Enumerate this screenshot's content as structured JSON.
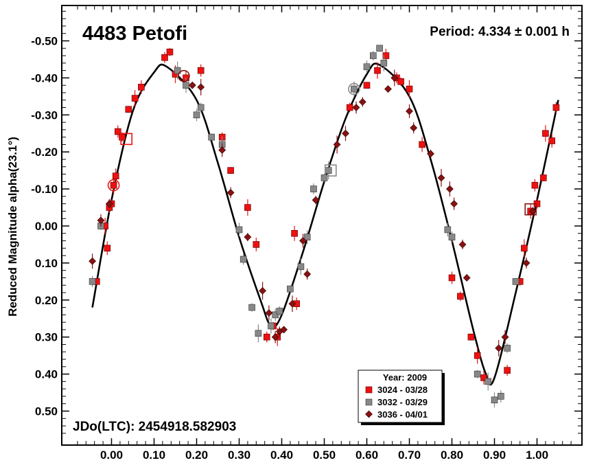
{
  "chart_data": {
    "type": "scatter",
    "title": "4483 Petofi",
    "period_text": "Period: 4.334 ± 0.001 h",
    "epoch_text": "JDo(LTC): 2454918.582903",
    "ylabel": "Reduced Magnitude alpha(23.1°)",
    "xlabel": "",
    "xlim": [
      -0.12,
      1.12
    ],
    "ylim": [
      0.6,
      -0.6
    ],
    "y_inverted": true,
    "x_ticks": [
      0.0,
      0.1,
      0.2,
      0.3,
      0.4,
      0.5,
      0.6,
      0.7,
      0.8,
      0.9,
      1.0
    ],
    "x_tick_labels": [
      "0.00",
      "0.10",
      "0.20",
      "0.30",
      "0.40",
      "0.50",
      "0.60",
      "0.70",
      "0.80",
      "0.90",
      "1.00"
    ],
    "y_ticks": [
      -0.5,
      -0.4,
      -0.3,
      -0.2,
      -0.1,
      0.0,
      0.1,
      0.2,
      0.3,
      0.4,
      0.5
    ],
    "y_tick_labels": [
      "-0.50",
      "-0.40",
      "-0.30",
      "-0.20",
      "-0.10",
      "0.00",
      "0.10",
      "0.20",
      "0.30",
      "0.40",
      "0.50"
    ],
    "grid": false,
    "legend_position": "bottom-center",
    "legend_title": "Year: 2009",
    "fit_curve": {
      "name": "",
      "color": "#000000",
      "x": [
        -0.045,
        0.0,
        0.05,
        0.1,
        0.13,
        0.2,
        0.25,
        0.3,
        0.35,
        0.375,
        0.4,
        0.45,
        0.5,
        0.55,
        0.6,
        0.63,
        0.7,
        0.75,
        0.8,
        0.85,
        0.88,
        0.9,
        0.95,
        1.0,
        1.05
      ],
      "y": [
        0.22,
        -0.07,
        -0.31,
        -0.415,
        -0.43,
        -0.34,
        -0.17,
        0.03,
        0.2,
        0.27,
        0.24,
        0.07,
        -0.12,
        -0.29,
        -0.41,
        -0.435,
        -0.35,
        -0.18,
        0.04,
        0.28,
        0.4,
        0.41,
        0.18,
        -0.07,
        -0.34
      ]
    },
    "series": [
      {
        "name": "3024 - 03/28",
        "color": "#ee1111",
        "marker": "square",
        "x": [
          -0.035,
          -0.015,
          -0.01,
          -0.005,
          0.0,
          0.005,
          0.01,
          0.015,
          0.025,
          0.04,
          0.055,
          0.07,
          0.125,
          0.137,
          0.15,
          0.175,
          0.21,
          0.26,
          0.28,
          0.32,
          0.34,
          0.365,
          0.38,
          0.39,
          0.43,
          0.435,
          0.56,
          0.6,
          0.625,
          0.645,
          0.67,
          0.68,
          0.7,
          0.73,
          0.8,
          0.82,
          0.845,
          0.86,
          0.875,
          0.93,
          0.96,
          0.97,
          0.985,
          0.995,
          1.0,
          1.015,
          1.02,
          1.035,
          1.045
        ],
        "y": [
          0.15,
          0.0,
          0.06,
          -0.05,
          -0.06,
          -0.11,
          -0.135,
          -0.255,
          -0.24,
          -0.315,
          -0.345,
          -0.375,
          -0.455,
          -0.47,
          -0.41,
          -0.4,
          -0.42,
          -0.24,
          -0.15,
          -0.05,
          0.05,
          0.3,
          0.27,
          0.3,
          0.02,
          0.21,
          -0.32,
          -0.38,
          -0.42,
          -0.46,
          -0.4,
          -0.39,
          -0.37,
          -0.22,
          0.14,
          0.19,
          0.3,
          0.35,
          0.41,
          0.39,
          0.15,
          0.06,
          -0.04,
          -0.11,
          -0.06,
          -0.13,
          -0.25,
          -0.23,
          -0.32
        ]
      },
      {
        "name": "3032 - 03/29",
        "color": "#888888",
        "marker": "square",
        "x": [
          -0.045,
          -0.025,
          0.155,
          0.175,
          0.2,
          0.21,
          0.235,
          0.26,
          0.3,
          0.31,
          0.33,
          0.345,
          0.375,
          0.385,
          0.395,
          0.42,
          0.445,
          0.46,
          0.475,
          0.5,
          0.51,
          0.57,
          0.6,
          0.615,
          0.63,
          0.64,
          0.79,
          0.8,
          0.86,
          0.885,
          0.9,
          0.915,
          0.93,
          0.95
        ],
        "y": [
          0.15,
          0.0,
          -0.42,
          -0.38,
          -0.3,
          -0.32,
          -0.24,
          -0.22,
          0.01,
          0.09,
          0.22,
          0.29,
          0.27,
          0.24,
          0.23,
          0.17,
          0.11,
          0.03,
          -0.1,
          -0.13,
          -0.15,
          -0.37,
          -0.43,
          -0.46,
          -0.48,
          -0.44,
          0.01,
          0.03,
          0.4,
          0.42,
          0.47,
          0.46,
          0.33,
          0.15
        ]
      },
      {
        "name": "3036 - 04/01",
        "color": "#881111",
        "marker": "diamond",
        "x": [
          -0.045,
          -0.025,
          -0.005,
          0.19,
          0.21,
          0.26,
          0.28,
          0.32,
          0.355,
          0.37,
          0.385,
          0.395,
          0.405,
          0.425,
          0.45,
          0.46,
          0.48,
          0.53,
          0.55,
          0.575,
          0.59,
          0.65,
          0.665,
          0.7,
          0.71,
          0.75,
          0.775,
          0.795,
          0.805,
          0.825,
          0.835,
          0.91,
          0.925,
          0.975,
          0.99
        ],
        "y": [
          0.095,
          -0.015,
          -0.06,
          -0.38,
          -0.375,
          -0.205,
          -0.09,
          0.03,
          0.175,
          0.235,
          0.3,
          0.285,
          0.28,
          0.21,
          0.04,
          0.13,
          -0.07,
          -0.22,
          -0.25,
          -0.32,
          -0.335,
          -0.37,
          -0.4,
          -0.31,
          -0.265,
          -0.195,
          -0.13,
          -0.1,
          -0.06,
          0.05,
          0.14,
          0.33,
          0.3,
          0.1,
          -0.04
        ]
      }
    ],
    "highlighted_points": [
      {
        "series": "3024 - 03/28",
        "shape": "circle",
        "x": 0.005,
        "y": -0.11
      },
      {
        "series": "3024 - 03/28",
        "shape": "square",
        "x": 0.035,
        "y": -0.235
      },
      {
        "series": "3036 - 04/01",
        "shape": "circle",
        "x": 0.17,
        "y": -0.405
      },
      {
        "series": "3032 - 03/29",
        "shape": "square",
        "x": 0.515,
        "y": -0.15
      },
      {
        "series": "3032 - 03/29",
        "shape": "circle",
        "x": 0.57,
        "y": -0.37
      },
      {
        "series": "3036 - 04/01",
        "shape": "square",
        "x": 0.985,
        "y": -0.045
      }
    ]
  }
}
